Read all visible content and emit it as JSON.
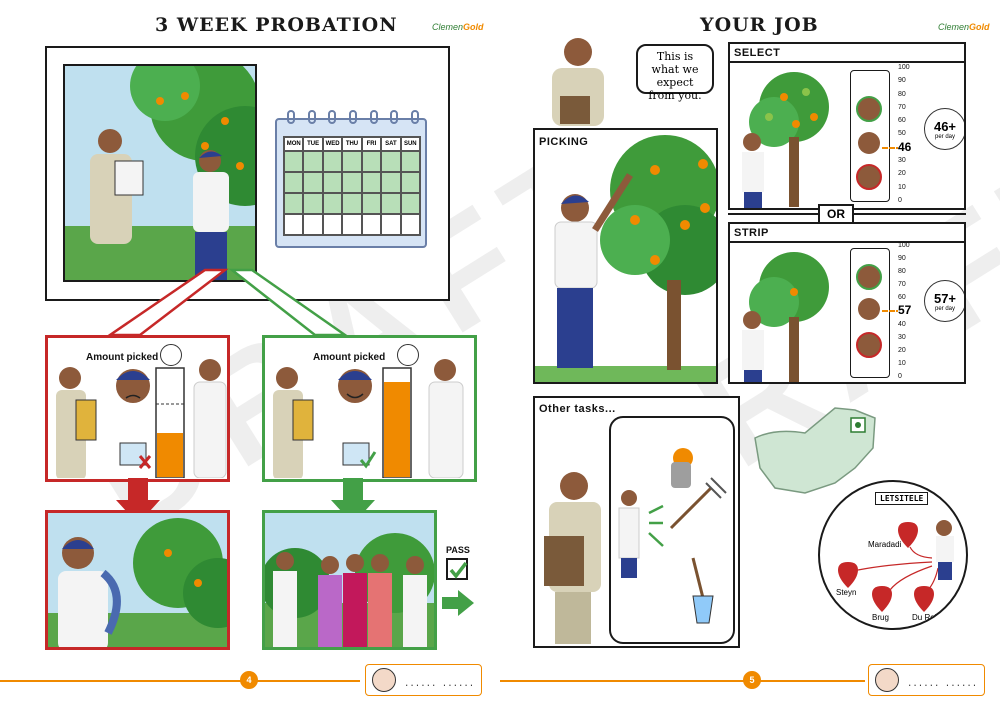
{
  "left_page": {
    "title": "3 WEEK PROBATION",
    "logo_main": "Clemen",
    "logo_accent": "Gold",
    "calendar_days": [
      "MON",
      "TUE",
      "WED",
      "THU",
      "FRI",
      "SAT",
      "SUN"
    ],
    "fail_panel_label": "Amount picked",
    "pass_panel_label": "Amount picked",
    "pass_label": "PASS",
    "page_number": "4",
    "footer_dots": "......  ......"
  },
  "right_page": {
    "title": "YOUR JOB",
    "logo_main": "Clemen",
    "logo_accent": "Gold",
    "speech": "This is what we expect from you.",
    "picking_label": "PICKING",
    "select_label": "SELECT",
    "or_label": "OR",
    "strip_label": "STRIP",
    "select_target": "46+",
    "select_per_day": "per day",
    "select_marker": "46",
    "strip_target": "57+",
    "strip_per_day": "per day",
    "strip_marker": "57",
    "scale_ticks": [
      "100",
      "90",
      "80",
      "70",
      "60",
      "50",
      "40",
      "30",
      "20",
      "10",
      "0"
    ],
    "other_tasks_label": "Other tasks...",
    "town_sign": "LETSITELE",
    "places": [
      "Maradadi",
      "Steyn",
      "Brug",
      "Du Roi"
    ],
    "page_number": "5",
    "footer_dots": "......  ......"
  },
  "watermark": "DRAFT",
  "colors": {
    "orange": "#f08a00",
    "red": "#c62828",
    "green": "#43a047",
    "tree": "#3f9b3a",
    "shirt_blue": "#2b3f8f",
    "sky": "#bfe0ef",
    "map": "#cfe6d3"
  }
}
